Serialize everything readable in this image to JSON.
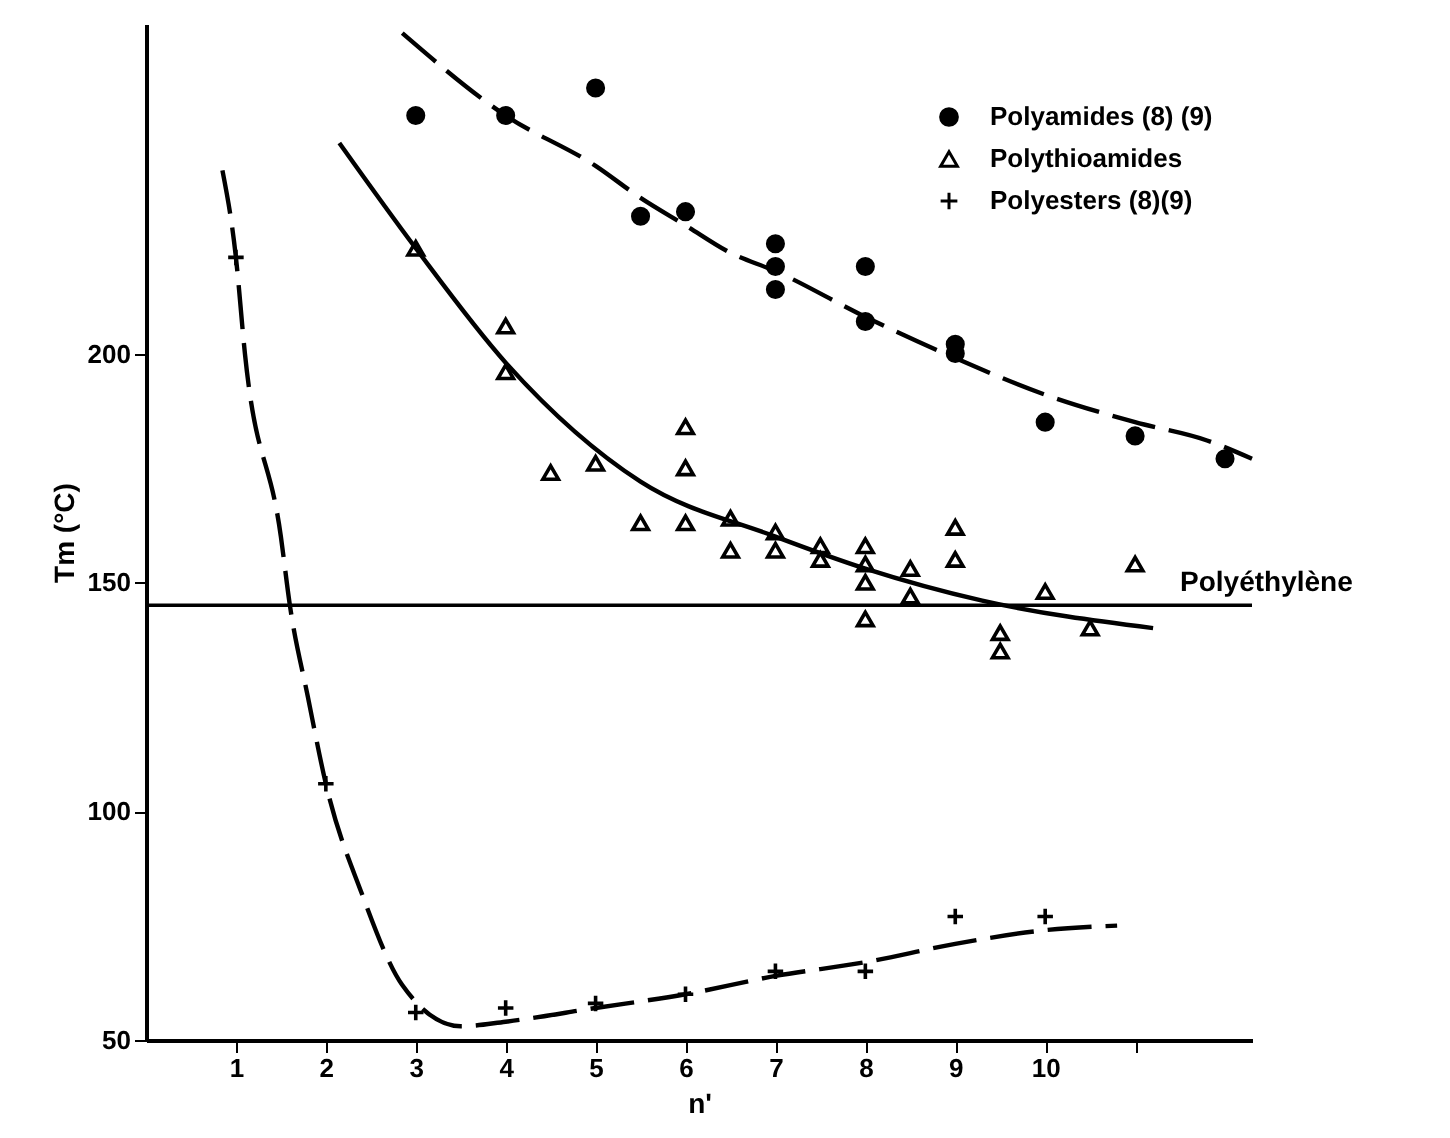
{
  "chart_data": {
    "type": "scatter",
    "xlabel": "n'",
    "ylabel": "Tm (°C)",
    "xlim": [
      0,
      12.3
    ],
    "ylim": [
      50,
      272
    ],
    "xticks": [
      1,
      2,
      3,
      4,
      5,
      6,
      7,
      8,
      9,
      10,
      {
        "value": 11,
        "label": null
      }
    ],
    "yticks": [
      50,
      100,
      150,
      200
    ],
    "grid": false,
    "legend": "top right",
    "series": [
      {
        "name": "Polyamides (8) (9)",
        "type": "scatter",
        "marker": "circle",
        "color": "#000000",
        "x": [
          3,
          4,
          5,
          5.5,
          6,
          7,
          7,
          7,
          8,
          8,
          9,
          9,
          10,
          11,
          12
        ],
        "values": [
          252,
          252,
          258,
          230,
          231,
          224,
          219,
          214,
          219,
          207,
          202,
          200,
          185,
          182,
          177
        ]
      },
      {
        "name": "Polythioamides",
        "type": "scatter",
        "marker": "triangle",
        "color": "#000000",
        "x": [
          3,
          4,
          4,
          4.5,
          5,
          5.5,
          6,
          6,
          6,
          6.5,
          6.5,
          7,
          7,
          7.5,
          7.5,
          8,
          8,
          8,
          8,
          8.5,
          8.5,
          9,
          9,
          9.5,
          9.5,
          10,
          10.5,
          11
        ],
        "values": [
          223,
          206,
          196,
          174,
          176,
          163,
          184,
          175,
          163,
          164,
          157,
          161,
          157,
          158,
          155,
          158,
          154,
          150,
          142,
          153,
          147,
          162,
          155,
          139,
          135,
          148,
          140,
          154
        ]
      },
      {
        "name": "Polyesters (8)(9)",
        "type": "scatter",
        "marker": "cross",
        "color": "#000000",
        "x": [
          1,
          2,
          3,
          4,
          5,
          6,
          7,
          8,
          9,
          10
        ],
        "values": [
          221,
          106,
          56,
          57,
          58,
          60,
          65,
          65,
          77,
          77
        ]
      },
      {
        "type": "line",
        "line_style": "dashed",
        "color": "#000000",
        "x": [
          2.85,
          4,
          5,
          5.5,
          6,
          6.5,
          7,
          8,
          9,
          10,
          11,
          11.8,
          12.3
        ],
        "values": [
          270,
          252,
          241,
          234,
          228,
          222,
          218,
          208,
          199,
          191,
          185,
          181,
          177
        ]
      },
      {
        "type": "line",
        "line_style": "solid",
        "color": "#000000",
        "x": [
          2.15,
          3,
          4,
          5.5,
          7,
          8,
          9.3,
          11.2
        ],
        "values": [
          246,
          223,
          198,
          172,
          160,
          153,
          146,
          140
        ]
      },
      {
        "type": "line",
        "line_style": "dashed",
        "color": "#000000",
        "x": [
          0.85,
          1,
          1.1,
          1.5,
          1.6,
          1.8,
          2,
          2.4,
          2.85,
          3.5,
          4,
          5,
          6,
          7,
          8,
          9,
          10,
          10.8
        ],
        "values": [
          240,
          221,
          200,
          160,
          145,
          125,
          106,
          82,
          62,
          53,
          54,
          57,
          60,
          64,
          67,
          71,
          74,
          75
        ]
      }
    ],
    "ref_lines": [
      {
        "axis": "y",
        "value": 145,
        "label": "Polyéthylène"
      }
    ]
  }
}
